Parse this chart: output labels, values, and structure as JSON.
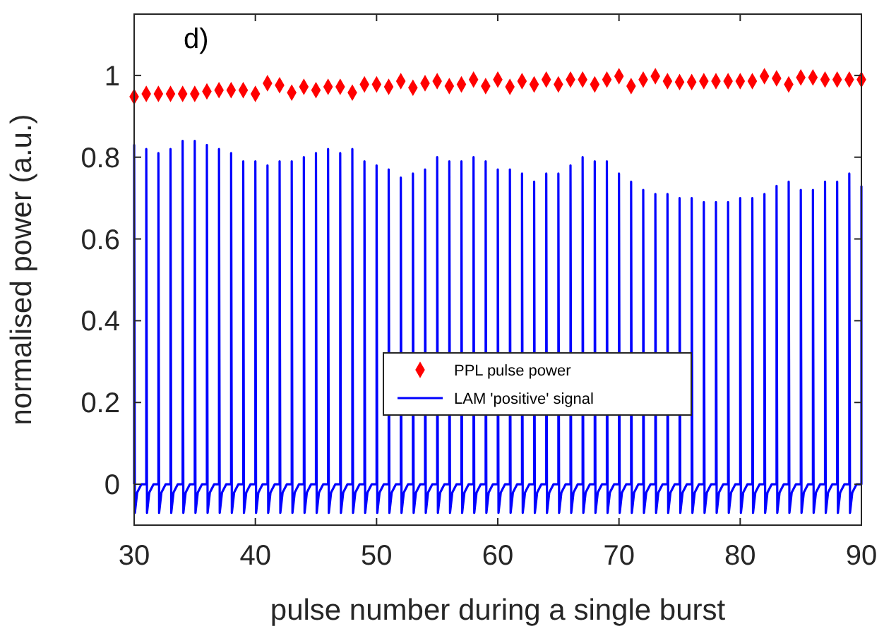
{
  "chart_data": {
    "type": "line",
    "xlabel": "pulse number during a single burst",
    "ylabel": "normalised power (a.u.)",
    "annotations": [
      "d)"
    ],
    "xlim": [
      30,
      90
    ],
    "xticks": [
      30,
      40,
      50,
      60,
      70,
      80,
      90
    ],
    "ylim": [
      -0.1,
      1.15
    ],
    "yticks": [
      0,
      0.2,
      0.4,
      0.6,
      0.8,
      1
    ],
    "grid": false,
    "legend": "bottom",
    "series": [
      {
        "name": "PPL pulse power",
        "type": "scatter",
        "marker": "diamond",
        "color": "#ff0000",
        "x": [
          30,
          31,
          32,
          33,
          34,
          35,
          36,
          37,
          38,
          39,
          40,
          41,
          42,
          43,
          44,
          45,
          46,
          47,
          48,
          49,
          50,
          51,
          52,
          53,
          54,
          55,
          56,
          57,
          58,
          59,
          60,
          61,
          62,
          63,
          64,
          65,
          66,
          67,
          68,
          69,
          70,
          71,
          72,
          73,
          74,
          75,
          76,
          77,
          78,
          79,
          80,
          81,
          82,
          83,
          84,
          85,
          86,
          87,
          88,
          89,
          90
        ],
        "values": [
          0.948,
          0.955,
          0.955,
          0.955,
          0.955,
          0.955,
          0.961,
          0.964,
          0.964,
          0.964,
          0.955,
          0.981,
          0.976,
          0.958,
          0.972,
          0.964,
          0.972,
          0.972,
          0.958,
          0.978,
          0.978,
          0.972,
          0.986,
          0.97,
          0.981,
          0.986,
          0.974,
          0.978,
          0.99,
          0.974,
          0.99,
          0.972,
          0.986,
          0.978,
          0.99,
          0.978,
          0.99,
          0.99,
          0.978,
          0.99,
          0.998,
          0.974,
          0.99,
          0.998,
          0.986,
          0.984,
          0.984,
          0.986,
          0.986,
          0.986,
          0.986,
          0.986,
          0.998,
          0.993,
          0.978,
          0.995,
          0.995,
          0.99,
          0.99,
          0.99,
          0.99
        ]
      },
      {
        "name": "LAM 'positive' signal",
        "marker": "none",
        "line_style": "solid",
        "color": "#0000ff",
        "x": [
          30,
          30,
          30.06,
          30.25,
          30.6,
          31,
          31,
          31.06,
          31.25,
          31.6,
          32,
          32,
          32.06,
          32.25,
          32.6,
          33,
          33,
          33.06,
          33.25,
          33.6,
          34,
          34,
          34.06,
          34.25,
          34.6,
          35,
          35,
          35.06,
          35.25,
          35.6,
          36,
          36,
          36.06,
          36.25,
          36.6,
          37,
          37,
          37.06,
          37.25,
          37.6,
          38,
          38,
          38.06,
          38.25,
          38.6,
          39,
          39,
          39.06,
          39.25,
          39.6,
          40,
          40,
          40.06,
          40.25,
          40.6,
          41,
          41,
          41.06,
          41.25,
          41.6,
          42,
          42,
          42.06,
          42.25,
          42.6,
          43,
          43,
          43.06,
          43.25,
          43.6,
          44,
          44,
          44.06,
          44.25,
          44.6,
          45,
          45,
          45.06,
          45.25,
          45.6,
          46,
          46,
          46.06,
          46.25,
          46.6,
          47,
          47,
          47.06,
          47.25,
          47.6,
          48,
          48,
          48.06,
          48.25,
          48.6,
          49,
          49,
          49.06,
          49.25,
          49.6,
          50,
          50,
          50.06,
          50.25,
          50.6,
          51,
          51,
          51.06,
          51.25,
          51.6,
          52,
          52,
          52.06,
          52.25,
          52.6,
          53,
          53,
          53.06,
          53.25,
          53.6,
          54,
          54,
          54.06,
          54.25,
          54.6,
          55,
          55,
          55.06,
          55.25,
          55.6,
          56,
          56,
          56.06,
          56.25,
          56.6,
          57,
          57,
          57.06,
          57.25,
          57.6,
          58,
          58,
          58.06,
          58.25,
          58.6,
          59,
          59,
          59.06,
          59.25,
          59.6,
          60,
          60,
          60.06,
          60.25,
          60.6,
          61,
          61,
          61.06,
          61.25,
          61.6,
          62,
          62,
          62.06,
          62.25,
          62.6,
          63,
          63,
          63.06,
          63.25,
          63.6,
          64,
          64,
          64.06,
          64.25,
          64.6,
          65,
          65,
          65.06,
          65.25,
          65.6,
          66,
          66,
          66.06,
          66.25,
          66.6,
          67,
          67,
          67.06,
          67.25,
          67.6,
          68,
          68,
          68.06,
          68.25,
          68.6,
          69,
          69,
          69.06,
          69.25,
          69.6,
          70,
          70,
          70.06,
          70.25,
          70.6,
          71,
          71,
          71.06,
          71.25,
          71.6,
          72,
          72,
          72.06,
          72.25,
          72.6,
          73,
          73,
          73.06,
          73.25,
          73.6,
          74,
          74,
          74.06,
          74.25,
          74.6,
          75,
          75,
          75.06,
          75.25,
          75.6,
          76,
          76,
          76.06,
          76.25,
          76.6,
          77,
          77,
          77.06,
          77.25,
          77.6,
          78,
          78,
          78.06,
          78.25,
          78.6,
          79,
          79,
          79.06,
          79.25,
          79.6,
          80,
          80,
          80.06,
          80.25,
          80.6,
          81,
          81,
          81.06,
          81.25,
          81.6,
          82,
          82,
          82.06,
          82.25,
          82.6,
          83,
          83,
          83.06,
          83.25,
          83.6,
          84,
          84,
          84.06,
          84.25,
          84.6,
          85,
          85,
          85.06,
          85.25,
          85.6,
          86,
          86,
          86.06,
          86.25,
          86.6,
          87,
          87,
          87.06,
          87.25,
          87.6,
          88,
          88,
          88.06,
          88.25,
          88.6,
          89,
          89,
          89.06,
          89.25,
          89.6,
          90,
          90
        ],
        "values": [
          0,
          0.83,
          -0.07,
          -0.02,
          0,
          0,
          0.82,
          -0.07,
          -0.02,
          0,
          0,
          0.81,
          -0.07,
          -0.02,
          0,
          0,
          0.82,
          -0.07,
          -0.02,
          0,
          0,
          0.84,
          -0.07,
          -0.02,
          0,
          0,
          0.84,
          -0.07,
          -0.02,
          0,
          0,
          0.83,
          -0.07,
          -0.02,
          0,
          0,
          0.82,
          -0.07,
          -0.02,
          0,
          0,
          0.81,
          -0.07,
          -0.02,
          0,
          0,
          0.79,
          -0.07,
          -0.02,
          0,
          0,
          0.79,
          -0.07,
          -0.02,
          0,
          0,
          0.78,
          -0.07,
          -0.02,
          0,
          0,
          0.79,
          -0.07,
          -0.02,
          0,
          0,
          0.79,
          -0.07,
          -0.02,
          0,
          0,
          0.8,
          -0.07,
          -0.02,
          0,
          0,
          0.81,
          -0.07,
          -0.02,
          0,
          0,
          0.82,
          -0.07,
          -0.02,
          0,
          0,
          0.81,
          -0.07,
          -0.02,
          0,
          0,
          0.82,
          -0.07,
          -0.02,
          0,
          0,
          0.79,
          -0.07,
          -0.02,
          0,
          0,
          0.78,
          -0.07,
          -0.02,
          0,
          0,
          0.77,
          -0.07,
          -0.02,
          0,
          0,
          0.75,
          -0.07,
          -0.02,
          0,
          0,
          0.76,
          -0.07,
          -0.02,
          0,
          0,
          0.77,
          -0.07,
          -0.02,
          0,
          0,
          0.8,
          -0.07,
          -0.02,
          0,
          0,
          0.79,
          -0.07,
          -0.02,
          0,
          0,
          0.79,
          -0.07,
          -0.02,
          0,
          0,
          0.8,
          -0.07,
          -0.02,
          0,
          0,
          0.79,
          -0.07,
          -0.02,
          0,
          0,
          0.77,
          -0.07,
          -0.02,
          0,
          0,
          0.77,
          -0.07,
          -0.02,
          0,
          0,
          0.76,
          -0.07,
          -0.02,
          0,
          0,
          0.74,
          -0.07,
          -0.02,
          0,
          0,
          0.76,
          -0.07,
          -0.02,
          0,
          0,
          0.76,
          -0.07,
          -0.02,
          0,
          0,
          0.78,
          -0.07,
          -0.02,
          0,
          0,
          0.8,
          -0.07,
          -0.02,
          0,
          0,
          0.79,
          -0.07,
          -0.02,
          0,
          0,
          0.79,
          -0.07,
          -0.02,
          0,
          0,
          0.76,
          -0.07,
          -0.02,
          0,
          0,
          0.74,
          -0.07,
          -0.02,
          0,
          0,
          0.72,
          -0.07,
          -0.02,
          0,
          0,
          0.71,
          -0.07,
          -0.02,
          0,
          0,
          0.71,
          -0.07,
          -0.02,
          0,
          0,
          0.7,
          -0.07,
          -0.02,
          0,
          0,
          0.7,
          -0.07,
          -0.02,
          0,
          0,
          0.69,
          -0.07,
          -0.02,
          0,
          0,
          0.69,
          -0.07,
          -0.02,
          0,
          0,
          0.69,
          -0.07,
          -0.02,
          0,
          0,
          0.7,
          -0.07,
          -0.02,
          0,
          0,
          0.7,
          -0.07,
          -0.02,
          0,
          0,
          0.71,
          -0.07,
          -0.02,
          0,
          0,
          0.73,
          -0.07,
          -0.02,
          0,
          0,
          0.74,
          -0.07,
          -0.02,
          0,
          0,
          0.72,
          -0.07,
          -0.02,
          0,
          0,
          0.72,
          -0.07,
          -0.02,
          0,
          0,
          0.74,
          -0.07,
          -0.02,
          0,
          0,
          0.74,
          -0.07,
          -0.02,
          0,
          0,
          0.76,
          -0.07,
          -0.02,
          0,
          0,
          0.73
        ]
      }
    ]
  }
}
